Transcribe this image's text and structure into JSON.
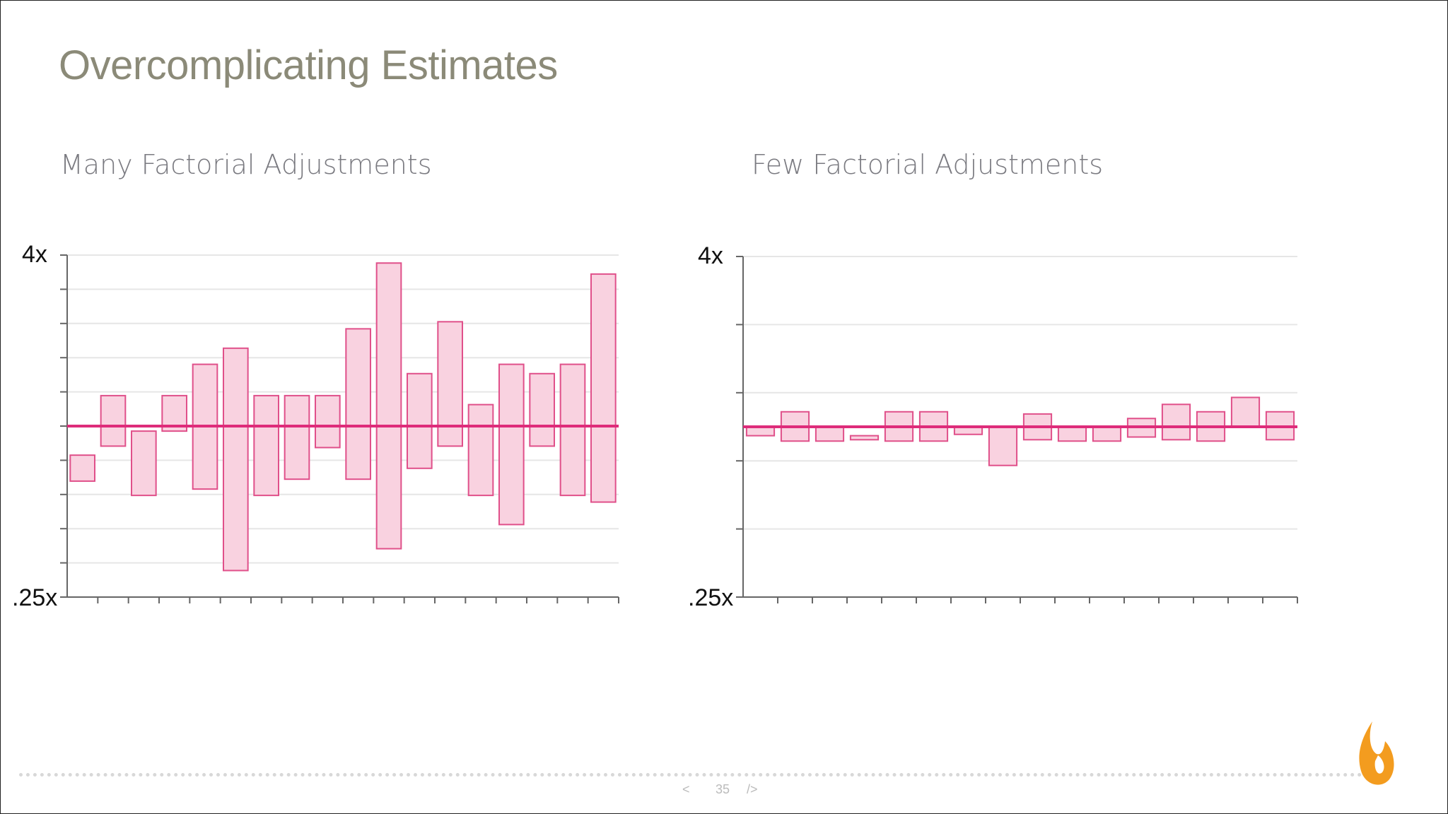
{
  "slide": {
    "title": "Overcomplicating Estimates",
    "page_number": "35",
    "nav_prev": "<",
    "nav_next": "/>"
  },
  "colors": {
    "title": "#8b8a78",
    "bar_fill": "#f9d2e0",
    "bar_stroke": "#e0508a",
    "baseline": "#de2c7a",
    "grid": "#e6e6e6",
    "axis": "#666666",
    "logo": "#f39c1f"
  },
  "icons": {
    "logo": "flame-logo-icon"
  },
  "chart_data": [
    {
      "type": "bar",
      "title": "Many Factorial Adjustments",
      "scale": "log",
      "ylim": [
        0.25,
        4
      ],
      "ytick_labels": [
        "4x",
        ".25x"
      ],
      "grid": true,
      "baseline": 1,
      "bars": [
        {
          "low": 0.64,
          "high": 0.79
        },
        {
          "low": 0.85,
          "high": 1.28
        },
        {
          "low": 0.57,
          "high": 0.96
        },
        {
          "low": 0.96,
          "high": 1.28
        },
        {
          "low": 0.6,
          "high": 1.65
        },
        {
          "low": 0.31,
          "high": 1.88
        },
        {
          "low": 0.57,
          "high": 1.28
        },
        {
          "low": 0.65,
          "high": 1.28
        },
        {
          "low": 0.84,
          "high": 1.28
        },
        {
          "low": 0.65,
          "high": 2.2
        },
        {
          "low": 0.37,
          "high": 3.75
        },
        {
          "low": 0.71,
          "high": 1.53
        },
        {
          "low": 0.85,
          "high": 2.33
        },
        {
          "low": 0.57,
          "high": 1.19
        },
        {
          "low": 0.45,
          "high": 1.65
        },
        {
          "low": 0.85,
          "high": 1.53
        },
        {
          "low": 0.57,
          "high": 1.65
        },
        {
          "low": 0.54,
          "high": 3.43
        }
      ]
    },
    {
      "type": "bar",
      "title": "Few Factorial Adjustments",
      "scale": "log",
      "ylim": [
        0.25,
        4
      ],
      "ytick_labels": [
        "4x",
        ".25x"
      ],
      "grid": true,
      "baseline": 1,
      "bars": [
        {
          "low": 0.93,
          "high": 1.0
        },
        {
          "low": 0.89,
          "high": 1.13
        },
        {
          "low": 0.89,
          "high": 1.0
        },
        {
          "low": 0.9,
          "high": 0.93
        },
        {
          "low": 0.89,
          "high": 1.13
        },
        {
          "low": 0.89,
          "high": 1.13
        },
        {
          "low": 0.94,
          "high": 1.0
        },
        {
          "low": 0.73,
          "high": 1.0
        },
        {
          "low": 0.9,
          "high": 1.11
        },
        {
          "low": 0.89,
          "high": 1.0
        },
        {
          "low": 0.89,
          "high": 1.0
        },
        {
          "low": 0.92,
          "high": 1.07
        },
        {
          "low": 0.9,
          "high": 1.2
        },
        {
          "low": 0.89,
          "high": 1.13
        },
        {
          "low": 1.0,
          "high": 1.27
        },
        {
          "low": 0.9,
          "high": 1.13
        }
      ]
    }
  ]
}
